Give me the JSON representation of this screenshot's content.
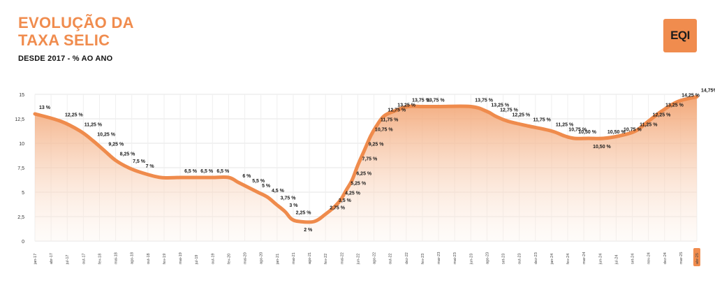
{
  "header": {
    "title_line1": "EVOLUÇÃO DA",
    "title_line2": "TAXA SELIC",
    "subtitle": "DESDE 2017 - % AO ANO",
    "logo": "EQI"
  },
  "colors": {
    "accent": "#f08c4e",
    "line": "#ef8b4c",
    "fill_top": "#f2a371",
    "fill_bottom": "#fdf1e8",
    "text": "#1a1a1a"
  },
  "chart_data": {
    "type": "area",
    "ylim": [
      0,
      15
    ],
    "y_ticks": [
      "0",
      "2,5",
      "5",
      "7,5",
      "10",
      "12,5",
      "15"
    ],
    "x_ticks": [
      "jan-17",
      "abr-17",
      "jul-17",
      "out-17",
      "fev-18",
      "mai-18",
      "ago-18",
      "out-18",
      "fev-19",
      "mai-19",
      "jul-19",
      "out-19",
      "fev-20",
      "mai-20",
      "ago-20",
      "jan-21",
      "mai-21",
      "ago-21",
      "fev-22",
      "mai-22",
      "jun-22",
      "ago-22",
      "out-22",
      "dez-22",
      "fev-23",
      "mar-23",
      "mai-23",
      "jun-23",
      "ago-23",
      "set-23",
      "out-23",
      "dez-23",
      "jan-24",
      "fev-24",
      "mar-24",
      "jun-24",
      "jul-24",
      "set-24",
      "nov-24",
      "dez-24",
      "mar-25",
      "abr-25"
    ],
    "highlight_tick": "abr-25",
    "series": [
      {
        "values": [
          13.0,
          12.25,
          11.25,
          10.25,
          9.25,
          8.25,
          7.5,
          7.0,
          6.5,
          6.5,
          6.5,
          6.5,
          6.5,
          6.0,
          5.5,
          5.0,
          4.5,
          3.75,
          3.0,
          2.25,
          2.0,
          2.0,
          2.75,
          3.5,
          4.25,
          5.25,
          6.25,
          7.75,
          9.25,
          10.75,
          11.75,
          12.75,
          13.25,
          13.75,
          13.75,
          13.75,
          13.75,
          13.25,
          12.75,
          12.25,
          11.75,
          11.25,
          10.75,
          10.5,
          10.5,
          10.5,
          10.75,
          11.25,
          12.25,
          13.25,
          14.25,
          14.75
        ],
        "x_positions": [
          0,
          1.6,
          2.8,
          3.6,
          4.3,
          5.0,
          5.8,
          6.6,
          7.8,
          9.0,
          10.0,
          11.0,
          12.0,
          12.6,
          13.2,
          13.8,
          14.4,
          14.95,
          15.5,
          15.9,
          16.4,
          17.3,
          18.0,
          18.55,
          18.95,
          19.3,
          19.65,
          20.0,
          20.4,
          20.8,
          21.15,
          21.6,
          22.2,
          23.1,
          24.0,
          25.0,
          27.0,
          28.0,
          28.55,
          29.3,
          30.6,
          32.0,
          32.8,
          33.4,
          34.3,
          35.2,
          36.2,
          37.2,
          38.0,
          38.8,
          39.8,
          41.0
        ],
        "labels": [
          "13 %",
          "12,25 %",
          "11,25 %",
          "10,25 %",
          "9,25 %",
          "8,25 %",
          "7,5 %",
          "7 %",
          "6,5 %",
          "6,5 %",
          "6,5 %",
          "6 %",
          "5,5 %",
          "5 %",
          "4,5 %",
          "3,75 %",
          "3 %",
          "2,25 %",
          "2 %",
          "2,75 %",
          "3,5 %",
          "4,25 %",
          "5,25 %",
          "6,25 %",
          "7,75 %",
          "9,25 %",
          "10,75 %",
          "11,75 %",
          "12,75 %",
          "13,25 %",
          "13,75 %",
          "13,75 %",
          "13,75 %",
          "13,25 %",
          "12,75 %",
          "12,25 %",
          "11,75 %",
          "11,25 %",
          "10,75 %",
          "10,50 %",
          "10,50 %",
          "10,50 %",
          "10,75 %",
          "11,25 %",
          "12,25 %",
          "13,25 %",
          "14,25 %",
          "14,75%"
        ],
        "label_points": [
          0,
          1,
          2,
          3,
          4,
          5,
          6,
          7,
          9,
          10,
          11,
          13,
          14,
          15,
          16,
          17,
          18,
          19,
          20,
          22,
          23,
          24,
          25,
          26,
          27,
          28,
          29,
          30,
          31,
          32,
          33,
          34,
          36,
          37,
          38,
          39,
          40,
          41,
          42,
          43,
          44,
          45,
          46,
          47,
          48,
          49,
          50,
          51
        ],
        "label_sides": [
          "a",
          "a",
          "a",
          "a",
          "a",
          "a",
          "a",
          "a",
          "a",
          "a",
          "a",
          "a",
          "a",
          "a",
          "a",
          "a",
          "a",
          "a",
          "b",
          "a",
          "a",
          "a",
          "a",
          "a",
          "a",
          "a",
          "a",
          "a",
          "a",
          "a",
          "a",
          "a",
          "a",
          "a",
          "a",
          "a",
          "a",
          "a",
          "a",
          "a",
          "b",
          "a",
          "a",
          "a",
          "a",
          "a",
          "a",
          "a"
        ]
      }
    ]
  }
}
